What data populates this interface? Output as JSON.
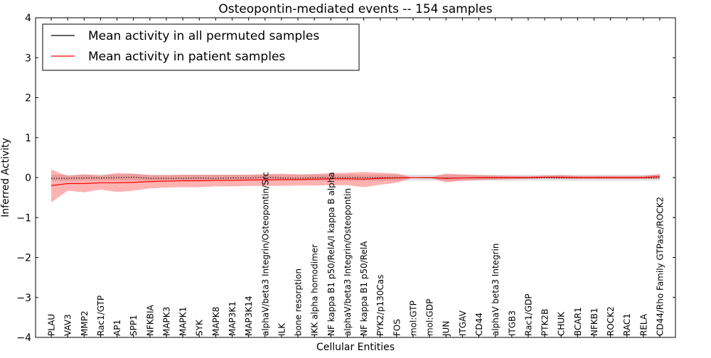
{
  "chart_data": {
    "type": "line",
    "title": "Osteopontin-mediated events -- 154 samples",
    "xlabel": "Cellular Entities",
    "ylabel": "Inferred Activity",
    "ylim": [
      -4,
      4
    ],
    "yticks": [
      -4,
      -3,
      -2,
      -1,
      0,
      1,
      2,
      3,
      4
    ],
    "ytick_labels": [
      "−4",
      "−3",
      "−2",
      "−1",
      "0",
      "1",
      "2",
      "3",
      "4"
    ],
    "legend": {
      "position": "top-left",
      "entries": [
        {
          "label": "Mean activity in all permuted samples",
          "color": "#000000"
        },
        {
          "label": "Mean activity in patient samples",
          "color": "#ff0000"
        }
      ]
    },
    "categories": [
      "PLAU",
      "VAV3",
      "MMP2",
      "Rac1/GTP",
      "AP1",
      "SPP1",
      "NFKBIA",
      "MAPK3",
      "MAPK1",
      "SYK",
      "MAPK8",
      "MAP3K1",
      "MAP3K14",
      "alphaV/beta3 Integrin/Osteopontin/Src",
      "ILK",
      "bone resorption",
      "IKK alpha homodimer",
      "NF kappa B1 p50/RelA/I kappa B alpha",
      "alphaV/beta3 Integrin/Osteopontin",
      "NF kappa B1 p50/RelA",
      "PYK2/p130Cas",
      "FOS",
      "mol:GTP",
      "mol:GDP",
      "JUN",
      "ITGAV",
      "CD44",
      "alphaV beta3 Integrin",
      "ITGB3",
      "Rac1/GDP",
      "PTK2B",
      "CHUK",
      "BCAR1",
      "NFKB1",
      "ROCK2",
      "RAC1",
      "RELA",
      "CD44/Rho Family GTPase/ROCK2"
    ],
    "series": [
      {
        "name": "Mean activity in all permuted samples",
        "color": "#000000",
        "style": "dotted",
        "values": [
          -0.02,
          -0.02,
          -0.01,
          -0.01,
          0.0,
          0.01,
          -0.02,
          -0.02,
          -0.02,
          -0.01,
          -0.02,
          -0.01,
          -0.01,
          0.01,
          -0.01,
          -0.02,
          0.0,
          0.0,
          0.0,
          0.0,
          0.0,
          0.0,
          0.0,
          -0.01,
          -0.01,
          -0.01,
          -0.01,
          -0.01,
          -0.01,
          -0.01,
          -0.01,
          -0.01,
          -0.01,
          -0.01,
          -0.01,
          -0.01,
          -0.01,
          -0.01
        ],
        "band_low": [
          -0.08,
          -0.08,
          -0.07,
          -0.07,
          -0.07,
          -0.07,
          -0.08,
          -0.08,
          -0.08,
          -0.08,
          -0.08,
          -0.08,
          -0.08,
          -0.07,
          -0.08,
          -0.08,
          -0.08,
          -0.08,
          -0.08,
          -0.08,
          -0.08,
          -0.08,
          -0.08,
          -0.08,
          -0.08,
          -0.08,
          -0.08,
          -0.08,
          -0.08,
          -0.08,
          -0.08,
          -0.08,
          -0.08,
          -0.08,
          -0.08,
          -0.08,
          -0.08,
          -0.08
        ],
        "band_high": [
          0.07,
          0.07,
          0.08,
          0.08,
          0.08,
          0.09,
          0.07,
          0.07,
          0.07,
          0.07,
          0.07,
          0.07,
          0.07,
          0.09,
          0.07,
          0.07,
          0.08,
          0.08,
          0.08,
          0.08,
          0.08,
          0.08,
          0.07,
          0.07,
          0.07,
          0.07,
          0.07,
          0.07,
          0.07,
          0.07,
          0.07,
          0.07,
          0.07,
          0.07,
          0.07,
          0.07,
          0.07,
          0.07
        ]
      },
      {
        "name": "Mean activity in patient samples",
        "color": "#ff0000",
        "style": "solid",
        "values": [
          -0.2,
          -0.15,
          -0.15,
          -0.13,
          -0.13,
          -0.12,
          -0.1,
          -0.09,
          -0.08,
          -0.08,
          -0.07,
          -0.07,
          -0.06,
          -0.06,
          -0.05,
          -0.05,
          -0.04,
          -0.03,
          -0.03,
          -0.04,
          -0.02,
          -0.01,
          0.0,
          0.0,
          -0.02,
          -0.01,
          0.0,
          0.0,
          0.0,
          0.0,
          0.01,
          0.01,
          0.0,
          0.0,
          0.0,
          0.0,
          0.0,
          0.03
        ],
        "band_low": [
          -0.62,
          -0.33,
          -0.37,
          -0.3,
          -0.36,
          -0.33,
          -0.27,
          -0.25,
          -0.24,
          -0.24,
          -0.22,
          -0.22,
          -0.21,
          -0.21,
          -0.21,
          -0.2,
          -0.2,
          -0.19,
          -0.19,
          -0.24,
          -0.18,
          -0.13,
          0.0,
          0.0,
          -0.12,
          -0.08,
          -0.06,
          -0.05,
          -0.04,
          -0.03,
          -0.02,
          -0.03,
          -0.03,
          -0.03,
          -0.03,
          -0.03,
          -0.03,
          -0.03
        ],
        "band_high": [
          0.2,
          0.04,
          0.08,
          0.05,
          0.11,
          0.1,
          0.06,
          0.06,
          0.07,
          0.07,
          0.07,
          0.07,
          0.07,
          0.08,
          0.1,
          0.08,
          0.09,
          0.11,
          0.12,
          0.14,
          0.12,
          0.1,
          0.0,
          0.0,
          0.1,
          0.08,
          0.06,
          0.05,
          0.04,
          0.03,
          0.05,
          0.06,
          0.04,
          0.04,
          0.04,
          0.04,
          0.04,
          0.09
        ]
      }
    ]
  }
}
